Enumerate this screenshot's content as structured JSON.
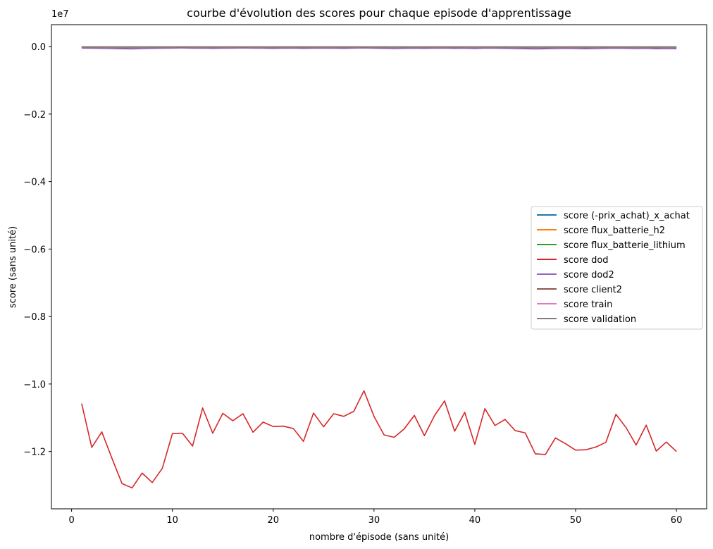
{
  "chart_data": {
    "type": "line",
    "title": "courbe d'évolution des scores pour chaque episode d'apprentissage",
    "xlabel": "nombre d'épisode (sans unité)",
    "ylabel": "score (sans unité)",
    "y_offset_label": "1e7",
    "xlim": [
      -2,
      63
    ],
    "ylim": [
      -13700000,
      650000
    ],
    "x_ticks": [
      0,
      10,
      20,
      30,
      40,
      50,
      60
    ],
    "x_tick_labels": [
      "0",
      "10",
      "20",
      "30",
      "40",
      "50",
      "60"
    ],
    "y_ticks": [
      0,
      -2000000,
      -4000000,
      -6000000,
      -8000000,
      -10000000,
      -12000000
    ],
    "y_tick_labels": [
      "0.0",
      "−0.2",
      "−0.4",
      "−0.6",
      "−0.8",
      "−1.0",
      "−1.2"
    ],
    "grid": false,
    "legend_position": "center-right",
    "x": [
      1,
      2,
      3,
      4,
      5,
      6,
      7,
      8,
      9,
      10,
      11,
      12,
      13,
      14,
      15,
      16,
      17,
      18,
      19,
      20,
      21,
      22,
      23,
      24,
      25,
      26,
      27,
      28,
      29,
      30,
      31,
      32,
      33,
      34,
      35,
      36,
      37,
      38,
      39,
      40,
      41,
      42,
      43,
      44,
      45,
      46,
      47,
      48,
      49,
      50,
      51,
      52,
      53,
      54,
      55,
      56,
      57,
      58,
      59,
      60
    ],
    "series": [
      {
        "name": "score (-prix_achat)_x_achat",
        "color": "#1f77b4",
        "values": [
          -20000,
          -15000,
          -18000,
          -22000,
          -25000,
          -20000,
          -18000,
          -15000,
          -20000,
          -18000,
          -16000,
          -19000,
          -15000,
          -17000,
          -16000,
          -18000,
          -14000,
          -19000,
          -17000,
          -15000,
          -16000,
          -18000,
          -17000,
          -15000,
          -19000,
          -16000,
          -18000,
          -15000,
          -14000,
          -17000,
          -19000,
          -18000,
          -16000,
          -15000,
          -18000,
          -17000,
          -15000,
          -19000,
          -16000,
          -18000,
          -15000,
          -17000,
          -16000,
          -18000,
          -19000,
          -20000,
          -18000,
          -17000,
          -16000,
          -19000,
          -18000,
          -17000,
          -16000,
          -15000,
          -18000,
          -19000,
          -16000,
          -18000,
          -17000,
          -19000
        ]
      },
      {
        "name": "score flux_batterie_h2",
        "color": "#ff7f0e",
        "values": [
          -10000,
          -9000,
          -11000,
          -10000,
          -12000,
          -10000,
          -9000,
          -10000,
          -11000,
          -10000,
          -9000,
          -10000,
          -11000,
          -9000,
          -10000,
          -11000,
          -10000,
          -9000,
          -10000,
          -11000,
          -10000,
          -9000,
          -10000,
          -11000,
          -10000,
          -9000,
          -10000,
          -11000,
          -10000,
          -9000,
          -10000,
          -11000,
          -10000,
          -9000,
          -10000,
          -11000,
          -10000,
          -9000,
          -10000,
          -11000,
          -10000,
          -9000,
          -10000,
          -11000,
          -10000,
          -9000,
          -10000,
          -11000,
          -10000,
          -9000,
          -10000,
          -11000,
          -10000,
          -9000,
          -10000,
          -11000,
          -10000,
          -9000,
          -10000,
          -11000
        ]
      },
      {
        "name": "score flux_batterie_lithium",
        "color": "#2ca02c",
        "values": [
          -5000,
          -6000,
          -5000,
          -7000,
          -6000,
          -5000,
          -6000,
          -5000,
          -7000,
          -6000,
          -5000,
          -6000,
          -5000,
          -7000,
          -6000,
          -5000,
          -6000,
          -5000,
          -7000,
          -6000,
          -5000,
          -6000,
          -5000,
          -7000,
          -6000,
          -5000,
          -6000,
          -5000,
          -7000,
          -6000,
          -5000,
          -6000,
          -5000,
          -7000,
          -6000,
          -5000,
          -6000,
          -5000,
          -7000,
          -6000,
          -5000,
          -6000,
          -5000,
          -7000,
          -6000,
          -5000,
          -6000,
          -5000,
          -7000,
          -6000,
          -5000,
          -6000,
          -5000,
          -7000,
          -6000,
          -5000,
          -6000,
          -5000,
          -7000,
          -6000
        ]
      },
      {
        "name": "score dod",
        "color": "#d62728",
        "values": [
          -10580000,
          -11880000,
          -11420000,
          -12200000,
          -12950000,
          -13080000,
          -12640000,
          -12920000,
          -12500000,
          -11470000,
          -11460000,
          -11840000,
          -10710000,
          -11460000,
          -10870000,
          -11090000,
          -10880000,
          -11430000,
          -11130000,
          -11260000,
          -11250000,
          -11320000,
          -11700000,
          -10860000,
          -11270000,
          -10880000,
          -10960000,
          -10810000,
          -10200000,
          -10960000,
          -11510000,
          -11580000,
          -11330000,
          -10930000,
          -11530000,
          -10940000,
          -10500000,
          -11400000,
          -10840000,
          -11790000,
          -10730000,
          -11230000,
          -11050000,
          -11380000,
          -11450000,
          -12070000,
          -12090000,
          -11600000,
          -11770000,
          -11960000,
          -11950000,
          -11870000,
          -11730000,
          -10900000,
          -11290000,
          -11810000,
          -11220000,
          -11990000,
          -11720000,
          -12000000
        ]
      },
      {
        "name": "score dod2",
        "color": "#9467bd",
        "values": [
          -45000,
          -50000,
          -55000,
          -60000,
          -65000,
          -70000,
          -60000,
          -55000,
          -50000,
          -45000,
          -40000,
          -50000,
          -45000,
          -55000,
          -50000,
          -45000,
          -40000,
          -45000,
          -50000,
          -55000,
          -50000,
          -45000,
          -55000,
          -50000,
          -45000,
          -50000,
          -55000,
          -45000,
          -40000,
          -50000,
          -55000,
          -60000,
          -55000,
          -50000,
          -55000,
          -50000,
          -45000,
          -55000,
          -50000,
          -60000,
          -45000,
          -50000,
          -55000,
          -60000,
          -65000,
          -70000,
          -65000,
          -60000,
          -55000,
          -60000,
          -65000,
          -60000,
          -55000,
          -50000,
          -55000,
          -60000,
          -55000,
          -65000,
          -60000,
          -65000
        ]
      },
      {
        "name": "score client2",
        "color": "#8c564b",
        "values": [
          -25000,
          -28000,
          -26000,
          -30000,
          -32000,
          -34000,
          -30000,
          -28000,
          -26000,
          -24000,
          -22000,
          -26000,
          -24000,
          -28000,
          -26000,
          -24000,
          -22000,
          -24000,
          -26000,
          -28000,
          -26000,
          -24000,
          -28000,
          -26000,
          -24000,
          -26000,
          -28000,
          -24000,
          -22000,
          -26000,
          -28000,
          -30000,
          -28000,
          -26000,
          -28000,
          -26000,
          -24000,
          -28000,
          -26000,
          -30000,
          -24000,
          -26000,
          -28000,
          -30000,
          -32000,
          -34000,
          -32000,
          -30000,
          -28000,
          -30000,
          -32000,
          -30000,
          -28000,
          -26000,
          -28000,
          -30000,
          -28000,
          -32000,
          -30000,
          -32000
        ]
      },
      {
        "name": "score train",
        "color": "#e377c2",
        "values": [
          -15000,
          -16000,
          -15000,
          -17000,
          -18000,
          -19000,
          -17000,
          -16000,
          -15000,
          -14000,
          -13000,
          -15000,
          -14000,
          -16000,
          -15000,
          -14000,
          -13000,
          -14000,
          -15000,
          -16000,
          -15000,
          -14000,
          -16000,
          -15000,
          -14000,
          -15000,
          -16000,
          -14000,
          -13000,
          -15000,
          -16000,
          -17000,
          -16000,
          -15000,
          -16000,
          -15000,
          -14000,
          -16000,
          -15000,
          -17000,
          -14000,
          -15000,
          -16000,
          -17000,
          -18000,
          -19000,
          -18000,
          -17000,
          -16000,
          -17000,
          -18000,
          -17000,
          -16000,
          -15000,
          -16000,
          -17000,
          -16000,
          -18000,
          -17000,
          -18000
        ]
      },
      {
        "name": "score validation",
        "color": "#7f7f7f",
        "values": [
          -8000,
          -9000,
          -8000,
          -10000,
          -11000,
          -12000,
          -10000,
          -9000,
          -8000,
          -7000,
          -6000,
          -8000,
          -7000,
          -9000,
          -8000,
          -7000,
          -6000,
          -7000,
          -8000,
          -9000,
          -8000,
          -7000,
          -9000,
          -8000,
          -7000,
          -8000,
          -9000,
          -7000,
          -6000,
          -8000,
          -9000,
          -10000,
          -9000,
          -8000,
          -9000,
          -8000,
          -7000,
          -9000,
          -8000,
          -10000,
          -7000,
          -8000,
          -9000,
          -10000,
          -11000,
          -12000,
          -11000,
          -10000,
          -9000,
          -10000,
          -11000,
          -10000,
          -9000,
          -8000,
          -9000,
          -10000,
          -9000,
          -11000,
          -10000,
          -11000
        ]
      }
    ]
  }
}
